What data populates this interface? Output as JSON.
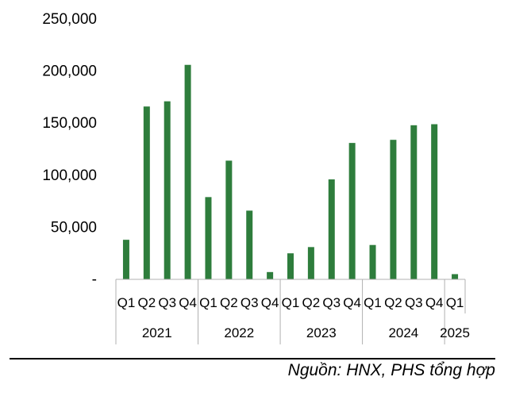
{
  "chart_data": {
    "type": "bar",
    "title": "",
    "xlabel": "",
    "ylabel": "",
    "ylim": [
      0,
      250000
    ],
    "yticks": [
      {
        "value": 0,
        "label": "-"
      },
      {
        "value": 50000,
        "label": "50,000"
      },
      {
        "value": 100000,
        "label": "100,000"
      },
      {
        "value": 150000,
        "label": "150,000"
      },
      {
        "value": 200000,
        "label": "200,000"
      },
      {
        "value": 250000,
        "label": "250,000"
      }
    ],
    "grid": false,
    "legend": "none",
    "bar_color": "#2e7d3c",
    "groups": [
      {
        "year": "2021",
        "quarters": [
          "Q1",
          "Q2",
          "Q3",
          "Q4"
        ],
        "values": [
          38000,
          166000,
          171000,
          206000
        ]
      },
      {
        "year": "2022",
        "quarters": [
          "Q1",
          "Q2",
          "Q3",
          "Q4"
        ],
        "values": [
          79000,
          114000,
          66000,
          7000
        ]
      },
      {
        "year": "2023",
        "quarters": [
          "Q1",
          "Q2",
          "Q3",
          "Q4"
        ],
        "values": [
          25000,
          31000,
          96000,
          131000
        ]
      },
      {
        "year": "2024",
        "quarters": [
          "Q1",
          "Q2",
          "Q3",
          "Q4"
        ],
        "values": [
          33000,
          134000,
          148000,
          149000
        ]
      },
      {
        "year": "2025",
        "quarters": [
          "Q1"
        ],
        "values": [
          5000
        ]
      }
    ]
  },
  "source": "Nguồn: HNX, PHS tổng hợp"
}
